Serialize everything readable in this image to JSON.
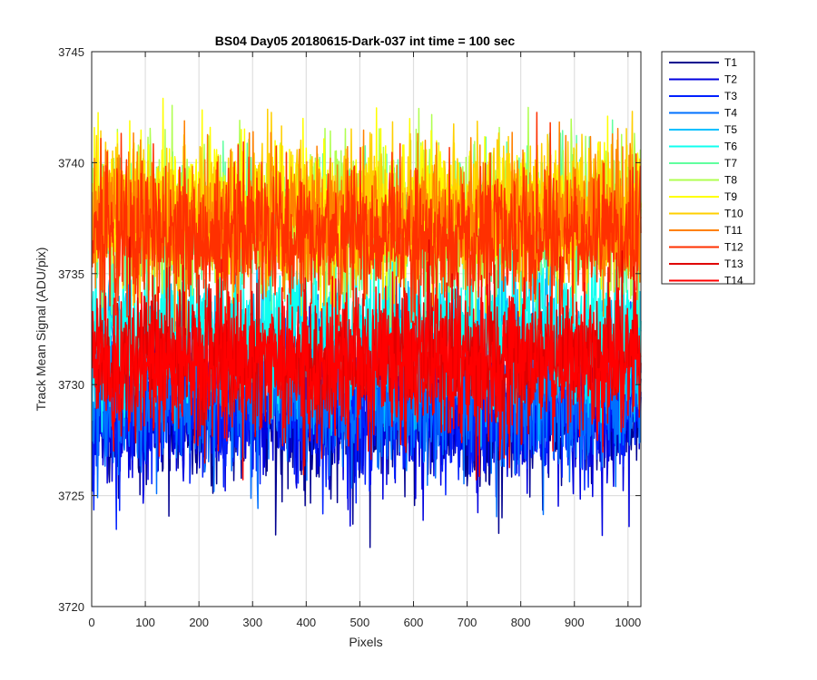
{
  "chart_data": {
    "type": "line",
    "title": "BS04 Day05 20180615-Dark-037 int time = 100 sec",
    "xlabel": "Pixels",
    "ylabel": "Track Mean Signal (ADU/pix)",
    "xlim": [
      0,
      1024
    ],
    "ylim": [
      3720,
      3745
    ],
    "x_ticks": [
      "0",
      "100",
      "200",
      "300",
      "400",
      "500",
      "600",
      "700",
      "800",
      "900",
      "1000"
    ],
    "y_ticks": [
      "3720",
      "3725",
      "3730",
      "3735",
      "3740",
      "3745"
    ],
    "grid": true,
    "legend_position": "outside-top-right",
    "series": [
      {
        "name": "T1",
        "color": "#00008f",
        "mean": 3728.6,
        "noise": 1.6
      },
      {
        "name": "T2",
        "color": "#0000df",
        "mean": 3728.8,
        "noise": 1.6
      },
      {
        "name": "T3",
        "color": "#0020ff",
        "mean": 3729.0,
        "noise": 1.6
      },
      {
        "name": "T4",
        "color": "#0070ff",
        "mean": 3729.4,
        "noise": 1.6
      },
      {
        "name": "T5",
        "color": "#00c0ff",
        "mean": 3731.8,
        "noise": 1.6
      },
      {
        "name": "T6",
        "color": "#10ffef",
        "mean": 3732.6,
        "noise": 1.6
      },
      {
        "name": "T7",
        "color": "#60ff9f",
        "mean": 3737.2,
        "noise": 1.6
      },
      {
        "name": "T8",
        "color": "#afff50",
        "mean": 3737.6,
        "noise": 1.6
      },
      {
        "name": "T9",
        "color": "#ffff00",
        "mean": 3738.0,
        "noise": 1.6
      },
      {
        "name": "T10",
        "color": "#ffcf00",
        "mean": 3737.8,
        "noise": 1.6
      },
      {
        "name": "T11",
        "color": "#ff8000",
        "mean": 3737.4,
        "noise": 1.6
      },
      {
        "name": "T12",
        "color": "#ff3000",
        "mean": 3736.8,
        "noise": 1.6
      },
      {
        "name": "T13",
        "color": "#df0000",
        "mean": 3731.2,
        "noise": 1.6
      },
      {
        "name": "T14",
        "color": "#ff0000",
        "mean": 3731.0,
        "noise": 1.6
      }
    ]
  }
}
